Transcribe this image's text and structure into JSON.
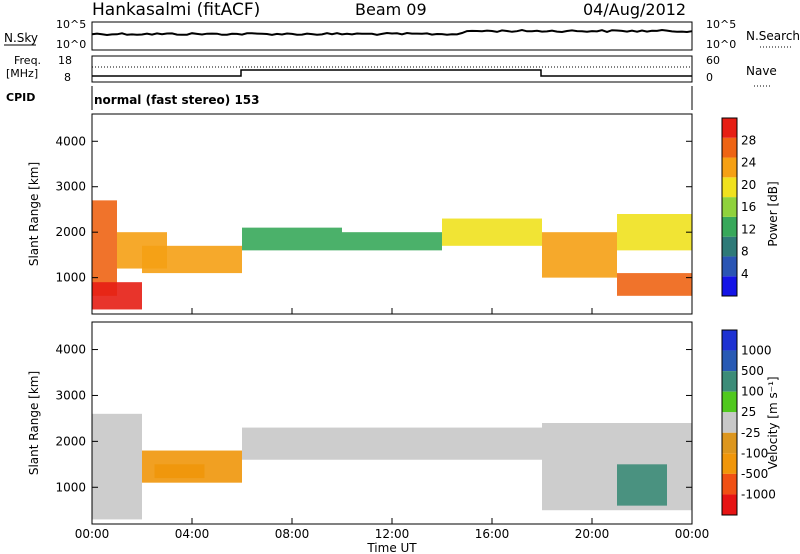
{
  "header": {
    "station": "Hankasalmi (fitACF)",
    "beam": "Beam 09",
    "date": "04/Aug/2012"
  },
  "top_panels": {
    "nsky_label": "N.Sky",
    "nsky_ticks": [
      "10^5",
      "10^0"
    ],
    "nsearch_label": "N.Search",
    "nsearch_ticks": [
      "10^5",
      "10^0"
    ],
    "freq_label_1": "Freq.",
    "freq_label_2": "[MHz]",
    "freq_ticks": [
      "18",
      "8"
    ],
    "nave_label": "Nave",
    "nave_ticks": [
      "60",
      "0"
    ],
    "cpid_label": "CPID",
    "cpid_text": "normal (fast stereo) 153"
  },
  "x_axis": {
    "ticks": [
      "00:00",
      "04:00",
      "08:00",
      "12:00",
      "16:00",
      "20:00",
      "00:00"
    ],
    "title": "Time UT"
  },
  "colors": {
    "power": [
      "#1414e6",
      "#2a55b4",
      "#2e7a78",
      "#37a85a",
      "#8fd23c",
      "#f0e11e",
      "#f5a014",
      "#ee6414",
      "#e61e14"
    ],
    "velocity": [
      "#1e32d2",
      "#285ab4",
      "#3c8c78",
      "#50c81e",
      "#c8c8c8",
      "#dc961e",
      "#f0960a",
      "#f05014",
      "#e61414"
    ]
  },
  "chart_data": [
    {
      "type": "heatmap",
      "panel": "power",
      "ylabel": "Slant Range [km]",
      "y_ticks": [
        "1000",
        "2000",
        "3000",
        "4000"
      ],
      "ylim": [
        200,
        4600
      ],
      "xlim_hours": [
        0,
        24
      ],
      "colorbar": {
        "title": "Power [dB]",
        "tick_labels": [
          "4",
          "8",
          "12",
          "16",
          "20",
          "24",
          "28"
        ],
        "range": [
          0,
          32
        ]
      },
      "bands": [
        {
          "t0": 0.0,
          "t1": 1.0,
          "r0": 600,
          "r1": 2700,
          "value": 26
        },
        {
          "t0": 0.0,
          "t1": 2.0,
          "r0": 300,
          "r1": 900,
          "value": 29
        },
        {
          "t0": 1.0,
          "t1": 3.0,
          "r0": 1200,
          "r1": 2000,
          "value": 24
        },
        {
          "t0": 2.0,
          "t1": 6.0,
          "r0": 1100,
          "r1": 1700,
          "value": 22
        },
        {
          "t0": 6.0,
          "t1": 10.0,
          "r0": 1600,
          "r1": 2100,
          "value": 12
        },
        {
          "t0": 10.0,
          "t1": 14.0,
          "r0": 1600,
          "r1": 2000,
          "value": 14
        },
        {
          "t0": 14.0,
          "t1": 18.0,
          "r0": 1700,
          "r1": 2300,
          "value": 20
        },
        {
          "t0": 18.0,
          "t1": 21.0,
          "r0": 1000,
          "r1": 2000,
          "value": 22
        },
        {
          "t0": 21.0,
          "t1": 24.0,
          "r0": 600,
          "r1": 1100,
          "value": 26
        },
        {
          "t0": 21.0,
          "t1": 24.0,
          "r0": 1600,
          "r1": 2400,
          "value": 20
        }
      ]
    },
    {
      "type": "heatmap",
      "panel": "velocity",
      "ylabel": "Slant Range [km]",
      "y_ticks": [
        "1000",
        "2000",
        "3000",
        "4000"
      ],
      "ylim": [
        200,
        4600
      ],
      "xlim_hours": [
        0,
        24
      ],
      "colorbar": {
        "title": "Velocity [m s⁻¹]",
        "tick_labels": [
          "1000",
          "500",
          "100",
          "25",
          "-25",
          "-100",
          "-500",
          "-1000"
        ]
      },
      "bands": [
        {
          "t0": 0.0,
          "t1": 2.0,
          "r0": 300,
          "r1": 2600,
          "value": 0
        },
        {
          "t0": 2.0,
          "t1": 6.0,
          "r0": 1100,
          "r1": 1800,
          "value": -60
        },
        {
          "t0": 2.5,
          "t1": 4.5,
          "r0": 1200,
          "r1": 1500,
          "value": -150
        },
        {
          "t0": 6.0,
          "t1": 18.0,
          "r0": 1600,
          "r1": 2300,
          "value": 0
        },
        {
          "t0": 18.0,
          "t1": 24.0,
          "r0": 500,
          "r1": 2400,
          "value": 0
        },
        {
          "t0": 21.0,
          "t1": 23.0,
          "r0": 600,
          "r1": 1500,
          "value": 150
        }
      ]
    }
  ]
}
